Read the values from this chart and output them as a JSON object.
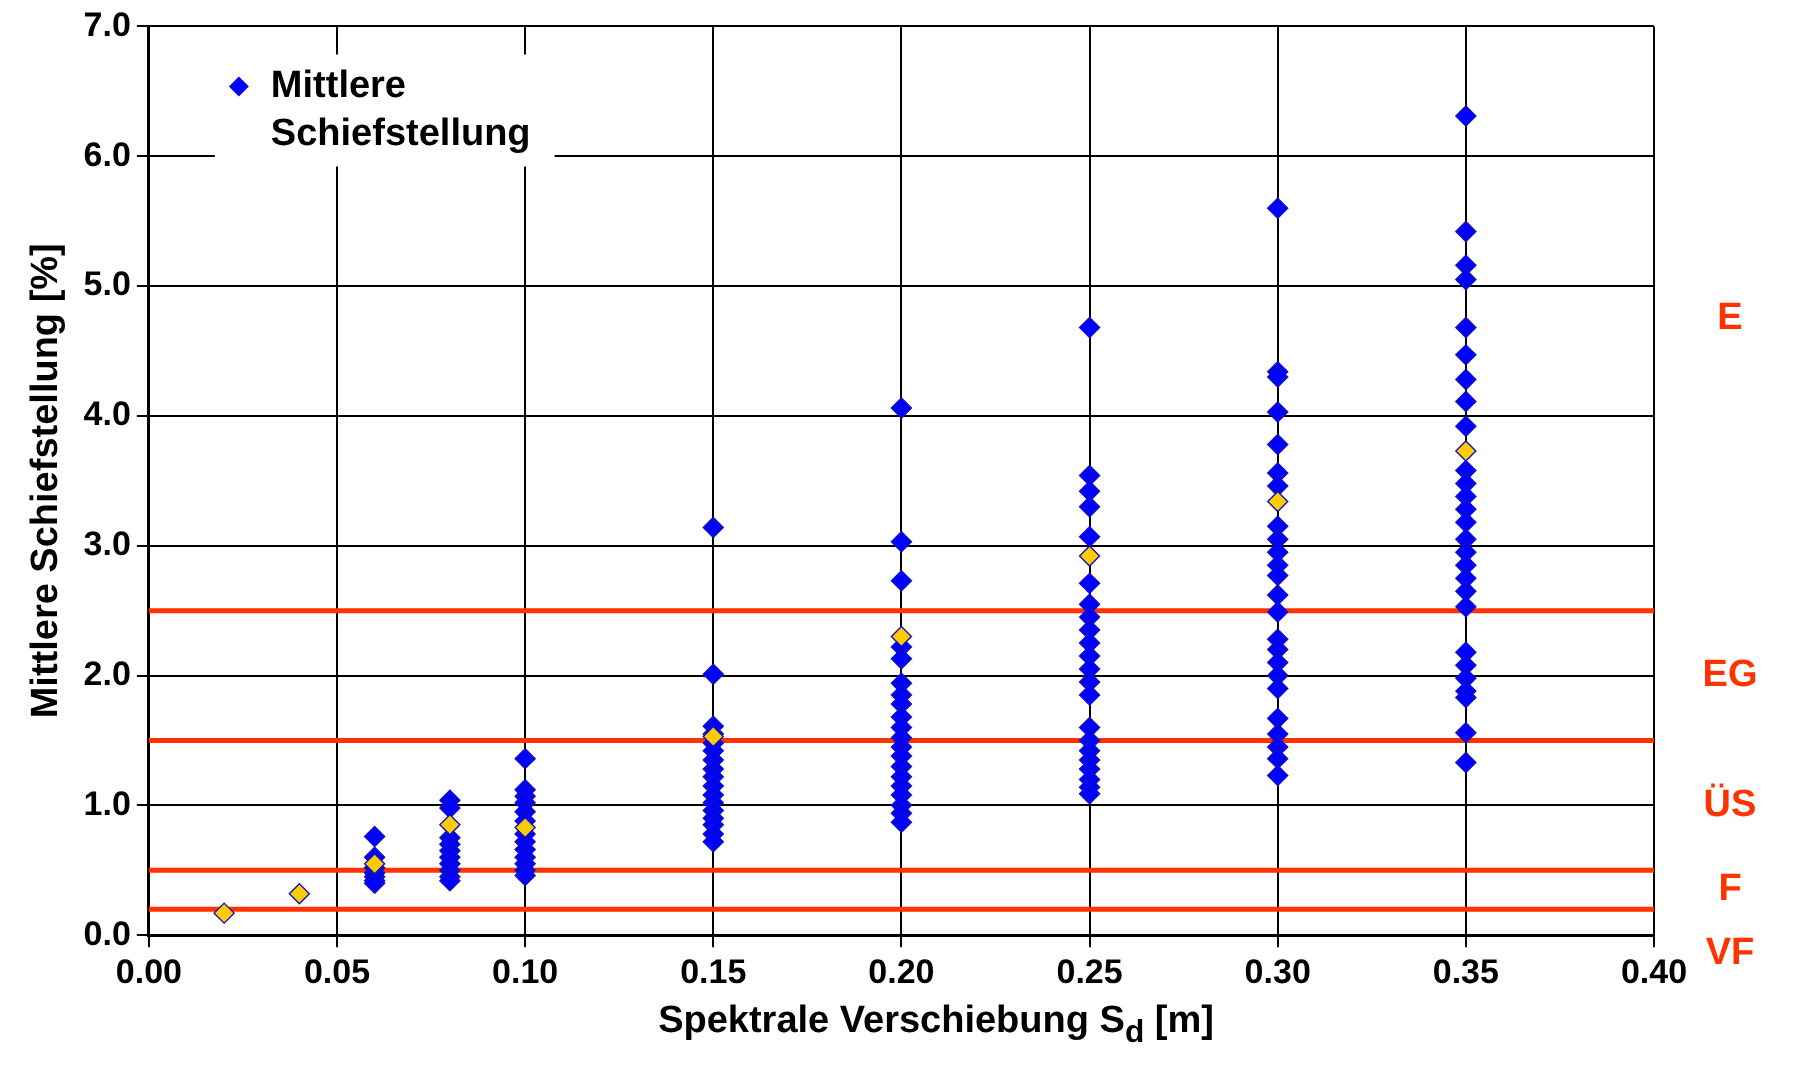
{
  "chart_data": {
    "type": "scatter",
    "xlabel": "Spektrale Verschiebung S$_{d}$ [m]",
    "ylabel": "Mittlere Schiefstellung [%]",
    "xlim": [
      0,
      0.4
    ],
    "xticks": [
      {
        "value": 0,
        "label": "0.00"
      },
      {
        "value": 0.05,
        "label": "0.05"
      },
      {
        "value": 0.1,
        "label": "0.10"
      },
      {
        "value": 0.15,
        "label": "0.15"
      },
      {
        "value": 0.2,
        "label": "0.20"
      },
      {
        "value": 0.25,
        "label": "0.25"
      },
      {
        "value": 0.3,
        "label": "0.30"
      },
      {
        "value": 0.35,
        "label": "0.35"
      },
      {
        "value": 0.4,
        "label": "0.40"
      }
    ],
    "ylim": [
      0,
      7
    ],
    "yticks": [
      {
        "value": 0,
        "label": "0.0"
      },
      {
        "value": 1,
        "label": "1.0"
      },
      {
        "value": 2,
        "label": "2.0"
      },
      {
        "value": 3,
        "label": "3.0"
      },
      {
        "value": 4,
        "label": "4.0"
      },
      {
        "value": 5,
        "label": "5.0"
      },
      {
        "value": 6,
        "label": "6.0"
      },
      {
        "value": 7,
        "label": "7.0"
      }
    ],
    "grid": true,
    "legend": "top left",
    "marker": "diamond",
    "series": [
      {
        "name": "Mittlere Schiefstellung",
        "color": "#0000ff",
        "x": [
          0.06,
          0.06,
          0.06,
          0.06,
          0.06,
          0.06,
          0.06,
          0.08,
          0.08,
          0.08,
          0.08,
          0.08,
          0.08,
          0.08,
          0.08,
          0.08,
          0.08,
          0.1,
          0.1,
          0.1,
          0.1,
          0.1,
          0.1,
          0.1,
          0.1,
          0.1,
          0.1,
          0.1,
          0.1,
          0.1,
          0.15,
          0.15,
          0.15,
          0.15,
          0.15,
          0.15,
          0.15,
          0.15,
          0.15,
          0.15,
          0.15,
          0.15,
          0.15,
          0.15,
          0.15,
          0.15,
          0.15,
          0.2,
          0.2,
          0.2,
          0.2,
          0.2,
          0.2,
          0.2,
          0.2,
          0.2,
          0.2,
          0.2,
          0.2,
          0.2,
          0.2,
          0.2,
          0.2,
          0.2,
          0.2,
          0.2,
          0.2,
          0.25,
          0.25,
          0.25,
          0.25,
          0.25,
          0.25,
          0.25,
          0.25,
          0.25,
          0.25,
          0.25,
          0.25,
          0.25,
          0.25,
          0.25,
          0.25,
          0.25,
          0.25,
          0.25,
          0.25,
          0.25,
          0.25,
          0.3,
          0.3,
          0.3,
          0.3,
          0.3,
          0.3,
          0.3,
          0.3,
          0.3,
          0.3,
          0.3,
          0.3,
          0.3,
          0.3,
          0.3,
          0.3,
          0.3,
          0.3,
          0.3,
          0.3,
          0.3,
          0.3,
          0.3,
          0.3,
          0.35,
          0.35,
          0.35,
          0.35,
          0.35,
          0.35,
          0.35,
          0.35,
          0.35,
          0.35,
          0.35,
          0.35,
          0.35,
          0.35,
          0.35,
          0.35,
          0.35,
          0.35,
          0.35,
          0.35,
          0.35,
          0.35,
          0.35,
          0.35,
          0.35,
          0.35,
          0.35
        ],
        "values": [
          0.76,
          0.6,
          0.52,
          0.48,
          0.45,
          0.42,
          0.4,
          1.04,
          0.98,
          0.75,
          0.7,
          0.65,
          0.6,
          0.55,
          0.5,
          0.45,
          0.42,
          1.36,
          1.12,
          1.07,
          1.02,
          0.95,
          0.88,
          0.78,
          0.72,
          0.66,
          0.6,
          0.55,
          0.5,
          0.46,
          3.14,
          2.01,
          1.61,
          1.55,
          1.48,
          1.42,
          1.35,
          1.28,
          1.22,
          1.15,
          1.08,
          1.02,
          0.96,
          0.9,
          0.85,
          0.78,
          0.72,
          4.06,
          3.03,
          2.73,
          2.22,
          2.13,
          1.94,
          1.85,
          1.78,
          1.68,
          1.6,
          1.52,
          1.45,
          1.38,
          1.3,
          1.22,
          1.15,
          1.08,
          1.0,
          0.94,
          0.87,
          4.68,
          3.54,
          3.42,
          3.3,
          3.07,
          2.71,
          2.55,
          2.45,
          2.35,
          2.25,
          2.15,
          2.05,
          1.95,
          1.85,
          1.6,
          1.5,
          1.42,
          1.35,
          1.28,
          1.2,
          1.14,
          1.09,
          5.6,
          4.34,
          4.3,
          4.03,
          3.78,
          3.56,
          3.46,
          3.15,
          3.05,
          2.95,
          2.85,
          2.77,
          2.62,
          2.49,
          2.28,
          2.2,
          2.1,
          2.0,
          1.9,
          1.67,
          1.55,
          1.45,
          1.36,
          1.23,
          6.31,
          5.42,
          5.16,
          5.05,
          4.68,
          4.47,
          4.28,
          4.11,
          3.92,
          3.58,
          3.48,
          3.38,
          3.28,
          3.18,
          3.05,
          2.95,
          2.85,
          2.75,
          2.65,
          2.53,
          2.18,
          2.08,
          1.98,
          1.88,
          1.83,
          1.56,
          1.33
        ]
      },
      {
        "color": "#ffcc00",
        "x": [
          0.02,
          0.04,
          0.06,
          0.08,
          0.1,
          0.15,
          0.2,
          0.25,
          0.3,
          0.35
        ],
        "values": [
          0.17,
          0.32,
          0.55,
          0.85,
          0.83,
          1.53,
          2.3,
          2.92,
          3.34,
          3.73
        ]
      }
    ],
    "ref_lines": [
      {
        "axis": "y",
        "value": 2.5,
        "color": "#ff3300"
      },
      {
        "axis": "y",
        "value": 1.5,
        "color": "#ff3300"
      },
      {
        "axis": "y",
        "value": 0.5,
        "color": "#ff3300"
      },
      {
        "axis": "y",
        "value": 0.2,
        "color": "#ff3300"
      }
    ],
    "annotations": [
      "E",
      "EG",
      "ÜS",
      "F",
      "VF"
    ]
  }
}
